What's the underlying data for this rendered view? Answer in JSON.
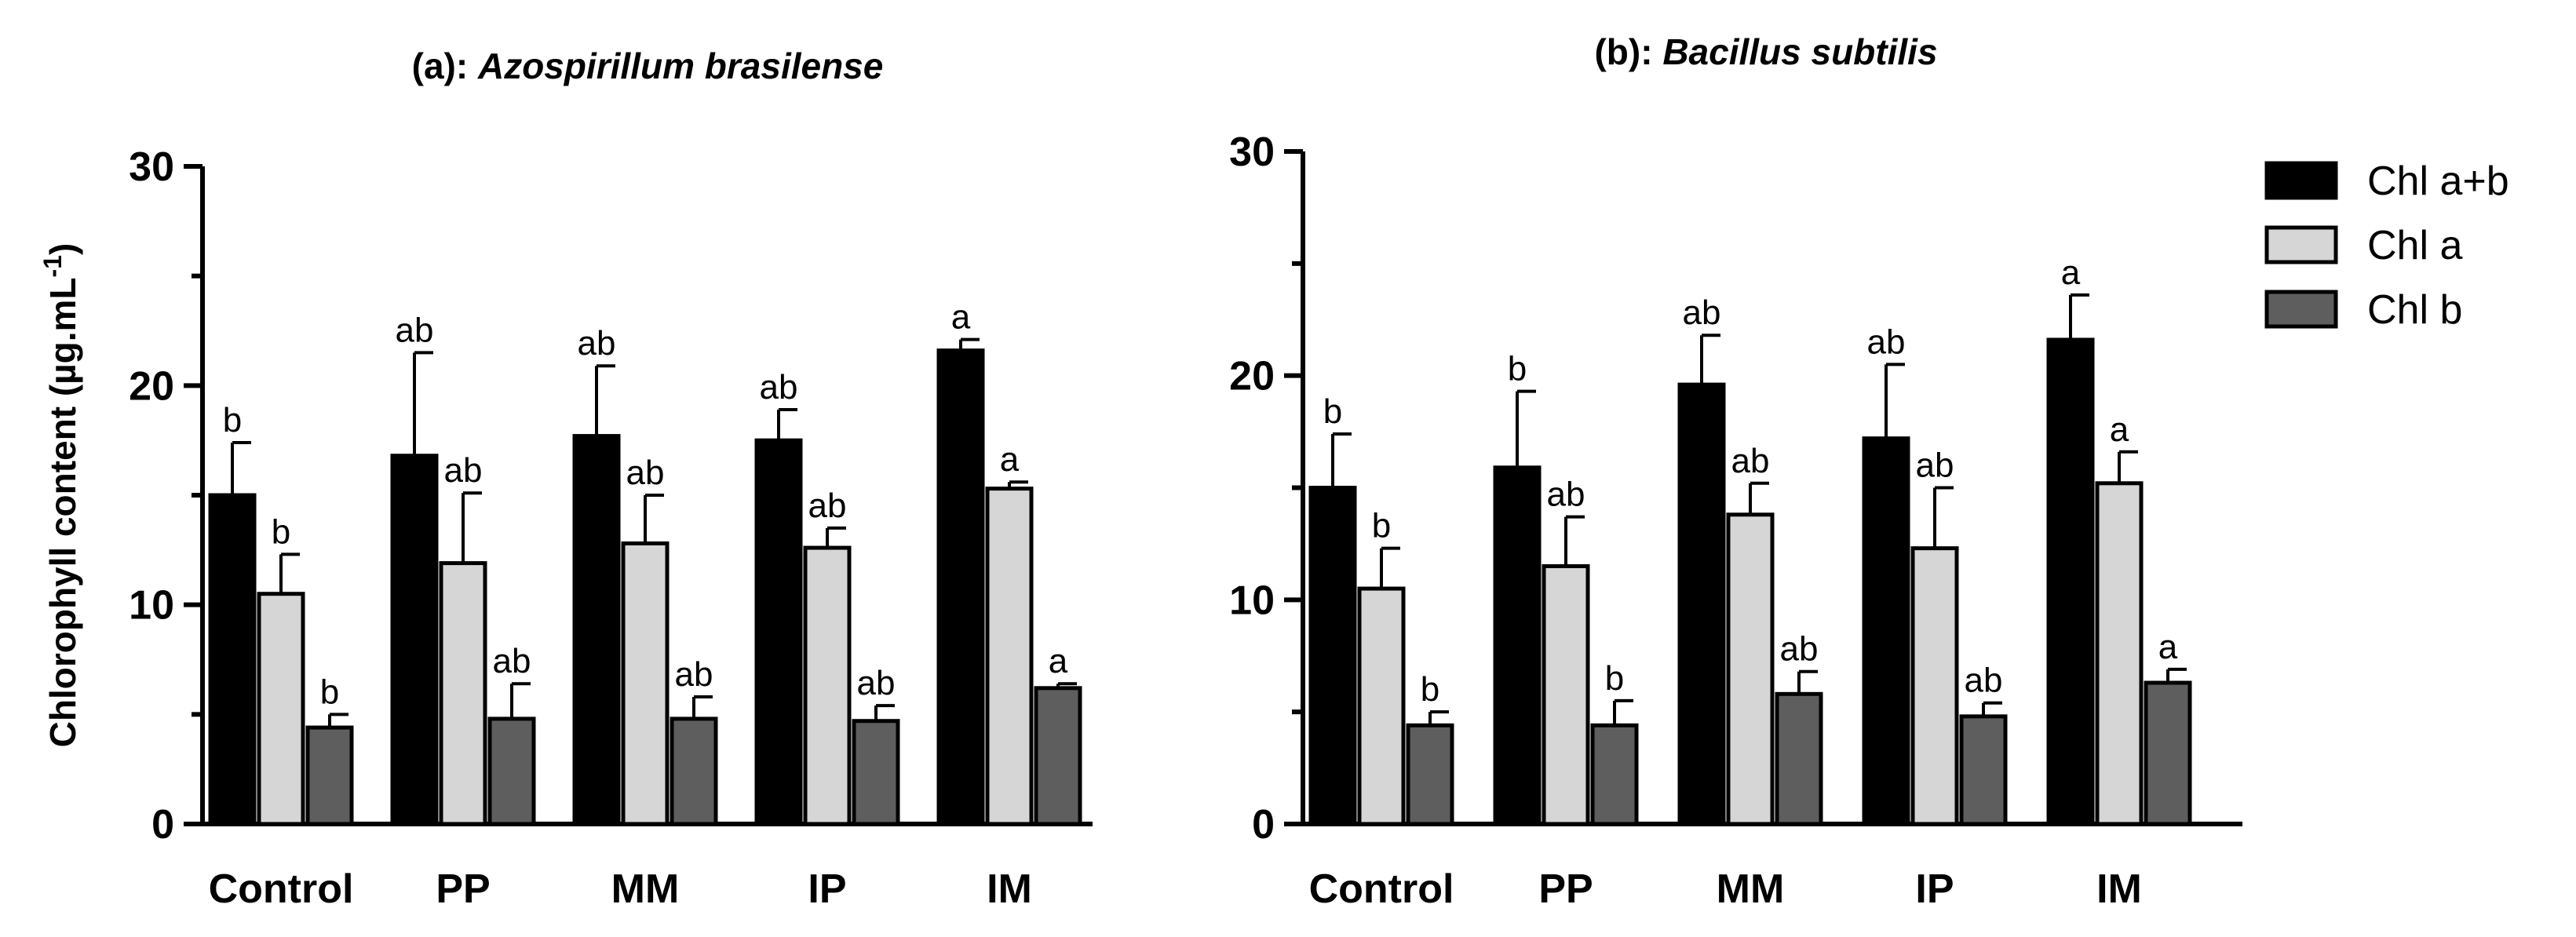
{
  "chart_data": [
    {
      "type": "bar",
      "title_prefix": "(a): ",
      "title_species": "Azospirillum brasilense",
      "ylabel": "Chlorophyll content (µg.mL",
      "ylabel_sup": "-1",
      "ylabel_close": ")",
      "ylim": [
        0,
        30
      ],
      "yticks": [
        "0",
        "10",
        "20",
        "30"
      ],
      "categories": [
        "Control",
        "PP",
        "MM",
        "IP",
        "IM"
      ],
      "series": [
        {
          "name": "Chl a+b",
          "values": [
            15.0,
            16.8,
            17.7,
            17.5,
            21.6
          ],
          "errors": [
            2.4,
            4.7,
            3.2,
            1.4,
            0.5
          ],
          "letters": [
            "b",
            "ab",
            "ab",
            "ab",
            "a"
          ],
          "color": "#000000"
        },
        {
          "name": "Chl a",
          "values": [
            10.5,
            11.9,
            12.8,
            12.6,
            15.3
          ],
          "errors": [
            1.8,
            3.2,
            2.2,
            0.9,
            0.3
          ],
          "letters": [
            "b",
            "ab",
            "ab",
            "ab",
            "a"
          ],
          "color": "#d6d6d6"
        },
        {
          "name": "Chl b",
          "values": [
            4.4,
            4.8,
            4.8,
            4.7,
            6.2
          ],
          "errors": [
            0.6,
            1.6,
            1.0,
            0.7,
            0.2
          ],
          "letters": [
            "b",
            "ab",
            "ab",
            "ab",
            "a"
          ],
          "color": "#5e5e5e"
        }
      ]
    },
    {
      "type": "bar",
      "title_prefix": "(b): ",
      "title_species": "Bacillus subtilis",
      "ylim": [
        0,
        30
      ],
      "yticks": [
        "0",
        "10",
        "20",
        "30"
      ],
      "categories": [
        "Control",
        "PP",
        "MM",
        "IP",
        "IM"
      ],
      "series": [
        {
          "name": "Chl a+b",
          "values": [
            15.0,
            15.9,
            19.6,
            17.2,
            21.6
          ],
          "errors": [
            2.4,
            3.4,
            2.2,
            3.3,
            2.0
          ],
          "letters": [
            "b",
            "b",
            "ab",
            "ab",
            "a"
          ],
          "color": "#000000"
        },
        {
          "name": "Chl a",
          "values": [
            10.5,
            11.5,
            13.8,
            12.3,
            15.2
          ],
          "errors": [
            1.8,
            2.2,
            1.4,
            2.7,
            1.4
          ],
          "letters": [
            "b",
            "ab",
            "ab",
            "ab",
            "a"
          ],
          "color": "#d6d6d6"
        },
        {
          "name": "Chl b",
          "values": [
            4.4,
            4.4,
            5.8,
            4.8,
            6.3
          ],
          "errors": [
            0.6,
            1.1,
            1.0,
            0.6,
            0.6
          ],
          "letters": [
            "b",
            "b",
            "ab",
            "ab",
            "a"
          ],
          "color": "#5e5e5e"
        }
      ],
      "legend": [
        "Chl a+b",
        "Chl a",
        "Chl b"
      ],
      "legend_position": "top-right"
    }
  ]
}
